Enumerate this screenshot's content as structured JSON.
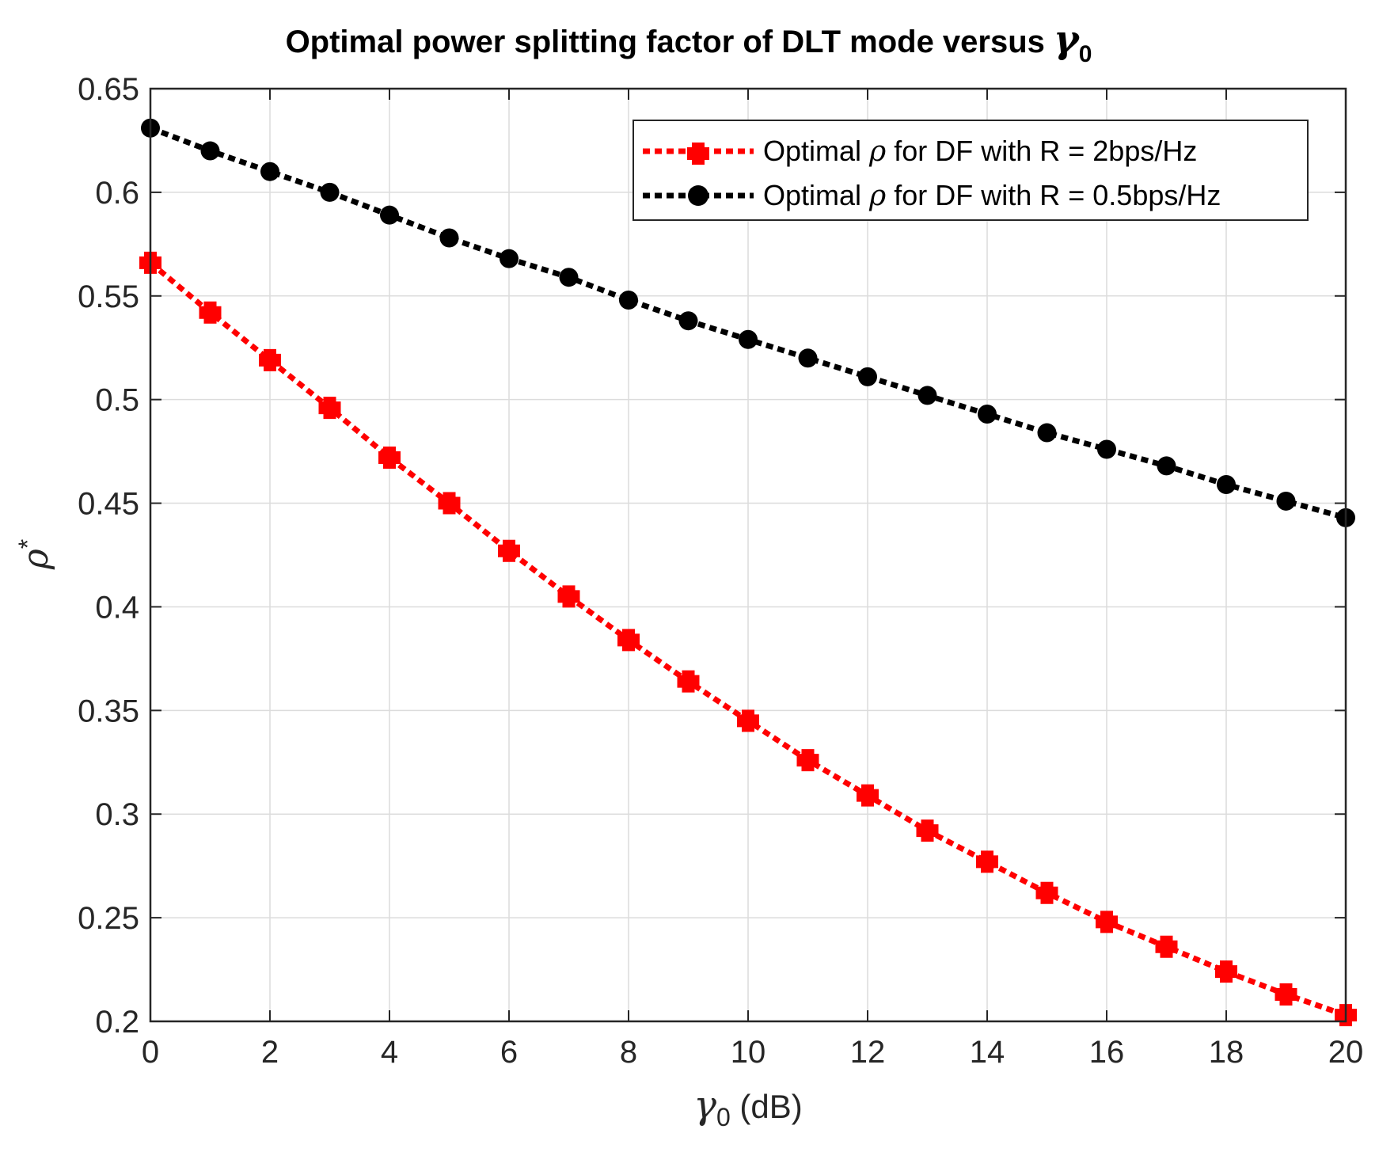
{
  "chart_data": {
    "type": "line",
    "title": "Optimal power splitting factor of DLT mode versus",
    "title_symbol": "γ",
    "title_symbol_sub": "0",
    "xlabel_symbol": "γ",
    "xlabel_symbol_sub": "0",
    "xlabel_unit": " (dB)",
    "ylabel_symbol": "ρ",
    "ylabel_sup": "*",
    "xlim": [
      0,
      20
    ],
    "ylim": [
      0.2,
      0.65
    ],
    "xticks": [
      0,
      2,
      4,
      6,
      8,
      10,
      12,
      14,
      16,
      18,
      20
    ],
    "xtick_labels": [
      "0",
      "2",
      "4",
      "6",
      "8",
      "10",
      "12",
      "14",
      "16",
      "18",
      "20"
    ],
    "yticks": [
      0.2,
      0.25,
      0.3,
      0.35,
      0.4,
      0.45,
      0.5,
      0.55,
      0.6,
      0.65
    ],
    "ytick_labels": [
      "0.2",
      "0.25",
      "0.3",
      "0.35",
      "0.4",
      "0.45",
      "0.5",
      "0.55",
      "0.6",
      "0.65"
    ],
    "grid": true,
    "legend_position": "top-right",
    "x": [
      0,
      1,
      2,
      3,
      4,
      5,
      6,
      7,
      8,
      9,
      10,
      11,
      12,
      13,
      14,
      15,
      16,
      17,
      18,
      19,
      20
    ],
    "series": [
      {
        "name_prefix": "Optimal ",
        "name_symbol": "ρ",
        "name_suffix": " for DF with R = 2bps/Hz",
        "color": "#ff0000",
        "marker": "plus",
        "values": [
          0.566,
          0.542,
          0.519,
          0.496,
          0.472,
          0.45,
          0.427,
          0.405,
          0.384,
          0.364,
          0.345,
          0.326,
          0.309,
          0.292,
          0.277,
          0.262,
          0.248,
          0.236,
          0.224,
          0.213,
          0.203
        ]
      },
      {
        "name_prefix": "Optimal ",
        "name_symbol": "ρ",
        "name_suffix": " for DF with R = 0.5bps/Hz",
        "color": "#000000",
        "marker": "circle",
        "values": [
          0.631,
          0.62,
          0.61,
          0.6,
          0.589,
          0.578,
          0.568,
          0.559,
          0.548,
          0.538,
          0.529,
          0.52,
          0.511,
          0.502,
          0.493,
          0.484,
          0.476,
          0.468,
          0.459,
          0.451,
          0.443
        ]
      }
    ]
  }
}
